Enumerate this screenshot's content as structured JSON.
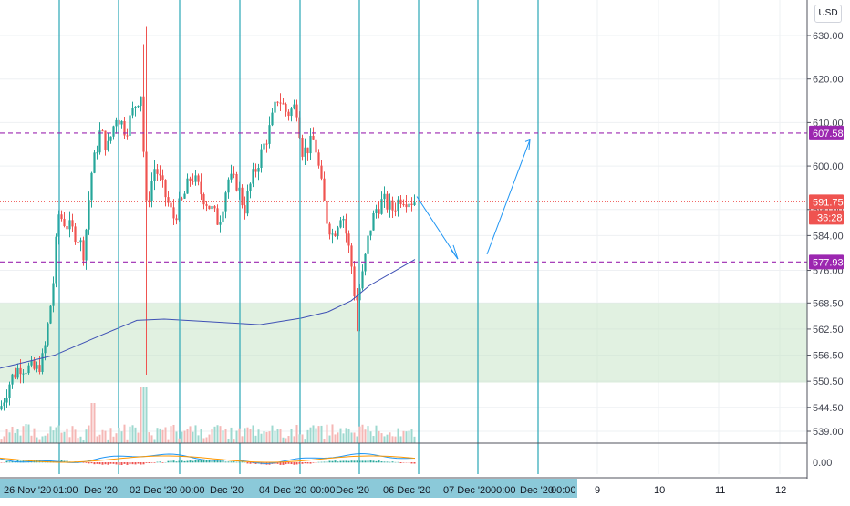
{
  "currency_badge": "USD",
  "chart_data": {
    "type": "candlestick",
    "price_axis": {
      "ticks": [
        "630.00",
        "620.00",
        "610.00",
        "600.00",
        "590.00",
        "584.00",
        "576.00",
        "568.50",
        "562.50",
        "556.50",
        "550.50",
        "544.50",
        "539.00"
      ],
      "macd_tick": "0.00"
    },
    "time_axis": {
      "labels": [
        "26 Nov '20",
        "01:00",
        "Dec '20",
        "02 Dec '20",
        "00:00",
        "Dec '20",
        "04 Dec '20",
        "00:00",
        "Dec '20",
        "06 Dec '20",
        "07 Dec '20",
        "00:00",
        "Dec '20",
        "00:00",
        "9",
        "10",
        "11",
        "12"
      ]
    },
    "levels": [
      {
        "price": 607.58,
        "label": "607.58",
        "style": "dashed",
        "color": "#9c27b0"
      },
      {
        "price": 577.93,
        "label": "577.93",
        "style": "dashed",
        "color": "#9c27b0"
      },
      {
        "price": 591.75,
        "label": "591.75",
        "style": "dotted",
        "color": "#ef5350"
      }
    ],
    "countdown": "36:28",
    "demand_zone": {
      "from": 550.2,
      "to": 568.5,
      "color": "#c8e6c9"
    },
    "colors": {
      "up": "#26a69a",
      "down": "#ef5350",
      "vline": "#2aa6b6",
      "ma": "#3f51b5",
      "macd": "#2196f3",
      "signal": "#ff9800"
    }
  }
}
